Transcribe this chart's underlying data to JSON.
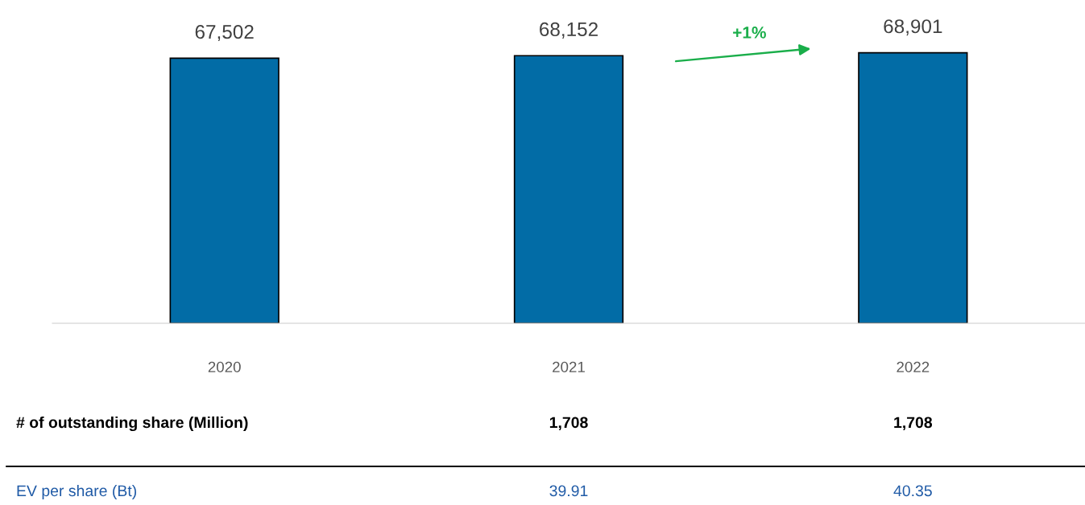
{
  "chart_data": {
    "type": "bar",
    "categories": [
      "2020",
      "2021",
      "2022"
    ],
    "values": [
      67502,
      68152,
      68901
    ],
    "color": "#026ca6",
    "value_labels": [
      "67,502",
      "68,152",
      "68,901"
    ],
    "grid": false,
    "legend": false,
    "annotations": [
      "+1%",
      "# of outstanding share (Million)",
      "1,708",
      "1,708",
      "EV per share (Bt)",
      "39.91",
      "40.35"
    ]
  }
}
